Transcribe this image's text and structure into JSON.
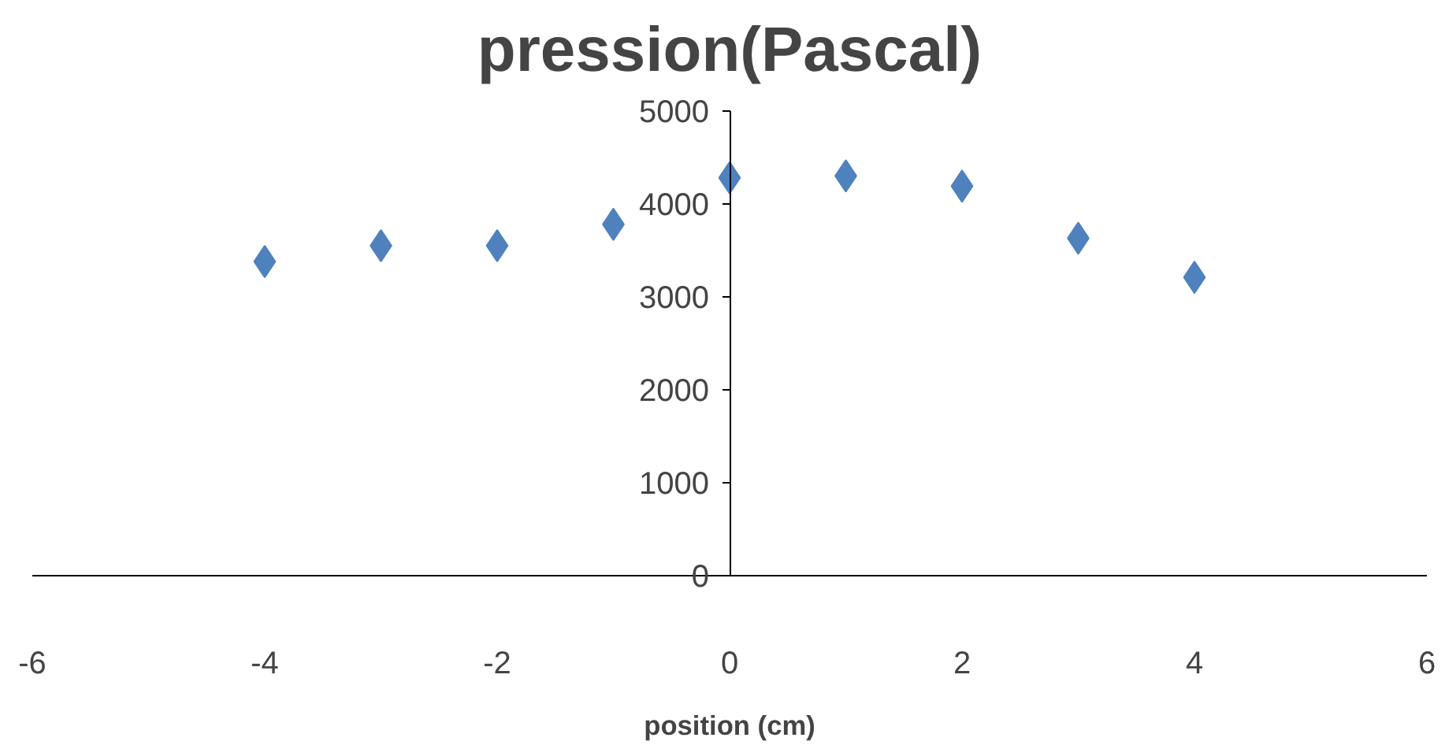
{
  "chart_data": {
    "type": "scatter",
    "title": "pression(Pascal)",
    "xlabel": "position (cm)",
    "x": [
      -4,
      -3,
      -2,
      -1,
      0,
      1,
      2,
      3,
      4
    ],
    "series": [
      {
        "color": "#4f81bd",
        "values": [
          3380,
          3550,
          3550,
          3780,
          4280,
          4300,
          4190,
          3630,
          3210
        ]
      }
    ],
    "marker": "diamond",
    "xlim": [
      -6,
      6
    ],
    "xticks": [
      -6,
      -4,
      -2,
      0,
      2,
      4,
      6
    ],
    "ylim": [
      0,
      5000
    ],
    "yticks": [
      0,
      1000,
      2000,
      3000,
      4000,
      5000
    ],
    "grid": false
  }
}
